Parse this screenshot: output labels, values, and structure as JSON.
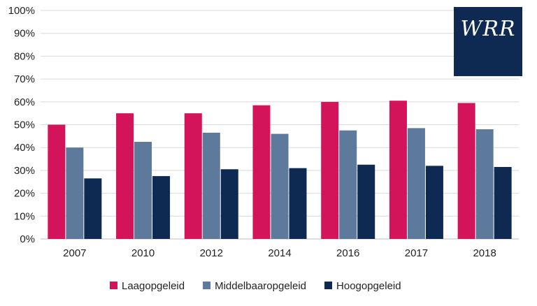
{
  "logo": {
    "text": "WRR",
    "background": "#0f2a52",
    "color": "#ffffff"
  },
  "chart_data": {
    "type": "bar",
    "categories": [
      "2007",
      "2010",
      "2012",
      "2014",
      "2016",
      "2017",
      "2018"
    ],
    "series": [
      {
        "name": "Laagopgeleid",
        "color": "#d4145a",
        "values": [
          50,
          55,
          55,
          58.5,
          60,
          60.5,
          59.5
        ]
      },
      {
        "name": "Middelbaaropgeleid",
        "color": "#5d7a9c",
        "values": [
          40,
          42.5,
          46.5,
          46,
          47.5,
          48.5,
          48
        ]
      },
      {
        "name": "Hoogopgeleid",
        "color": "#0f2a52",
        "values": [
          26.5,
          27.5,
          30.5,
          31,
          32.5,
          32,
          31.5
        ]
      }
    ],
    "ylim": [
      0,
      100
    ],
    "yticks": [
      "0%",
      "10%",
      "20%",
      "30%",
      "40%",
      "50%",
      "60%",
      "70%",
      "80%",
      "90%",
      "100%"
    ],
    "grid": true,
    "legend_position": "bottom"
  }
}
